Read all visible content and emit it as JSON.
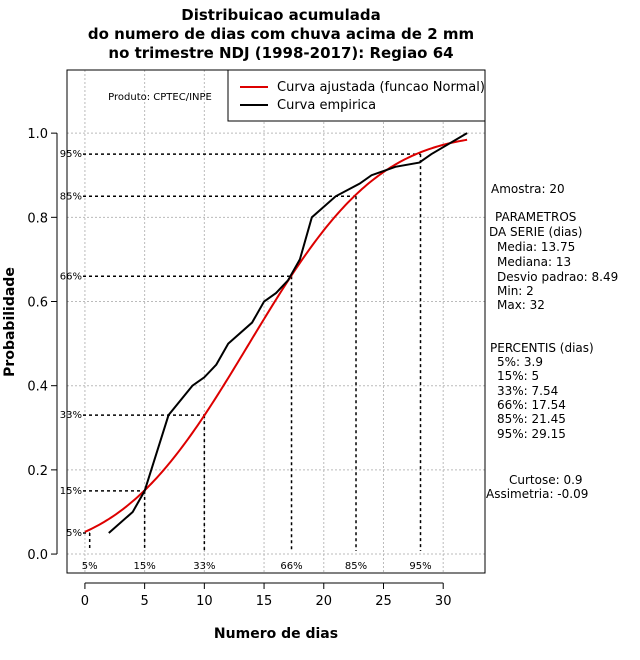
{
  "chart_data": {
    "type": "line",
    "title": [
      "Distribuicao acumulada",
      "do numero de dias com chuva acima de 2 mm",
      "no trimestre NDJ (1998-2017): Regiao 64"
    ],
    "xlabel": "Numero de dias",
    "ylabel": "Probabilidade",
    "xlim": [
      -1.5,
      33.5
    ],
    "ylim": [
      -0.045,
      1.15
    ],
    "xticks": [
      "0",
      "5",
      "10",
      "15",
      "20",
      "25",
      "30"
    ],
    "yticks": [
      "0.0",
      "0.2",
      "0.4",
      "0.6",
      "0.8",
      "1.0"
    ],
    "grid": true,
    "producer": "Produto: CPTEC/INPE",
    "legend": {
      "position": "top-right",
      "entries": [
        {
          "label": "Curva ajustada (funcao Normal)",
          "color": "#dd0000"
        },
        {
          "label": "Curva empirica",
          "color": "#000000"
        }
      ]
    },
    "series": [
      {
        "name": "Curva ajustada (funcao Normal)",
        "color": "#dd0000",
        "mean": 13.75,
        "sd": 8.49,
        "x_start": 0,
        "x_end": 32
      },
      {
        "name": "Curva empirica",
        "color": "#000000",
        "x": [
          2,
          4,
          5,
          7,
          9,
          10,
          11,
          12,
          14,
          15,
          16,
          17,
          18,
          19,
          21,
          23,
          24,
          26,
          28,
          29,
          32
        ],
        "y": [
          0.05,
          0.1,
          0.15,
          0.33,
          0.4,
          0.42,
          0.45,
          0.5,
          0.55,
          0.6,
          0.62,
          0.65,
          0.7,
          0.8,
          0.85,
          0.88,
          0.9,
          0.92,
          0.93,
          0.95,
          1.0
        ]
      }
    ],
    "percentiles": [
      {
        "label": "5%",
        "x": 0.4,
        "y": 0.05
      },
      {
        "label": "15%",
        "x": 5.0,
        "y": 0.15
      },
      {
        "label": "33%",
        "x": 10.0,
        "y": 0.33
      },
      {
        "label": "66%",
        "x": 17.3,
        "y": 0.66
      },
      {
        "label": "85%",
        "x": 22.7,
        "y": 0.85
      },
      {
        "label": "95%",
        "x": 28.1,
        "y": 0.95
      }
    ]
  },
  "stats": {
    "amostra": "Amostra: 20",
    "params_title_1": "PARAMETROS",
    "params_title_2": "DA SERIE (dias)",
    "media": "Media: 13.75",
    "mediana": "Mediana: 13",
    "desvio": "Desvio padrao: 8.49",
    "min": "Min: 2",
    "max": "Max: 32",
    "percentis_title": "PERCENTIS (dias)",
    "p5": "5%: 3.9",
    "p15": "15%: 5",
    "p33": "33%: 7.54",
    "p66": "66%: 17.54",
    "p85": "85%: 21.45",
    "p95": "95%: 29.15",
    "curtose": "Curtose: 0.9",
    "assimetria": "Assimetria: -0.09"
  }
}
